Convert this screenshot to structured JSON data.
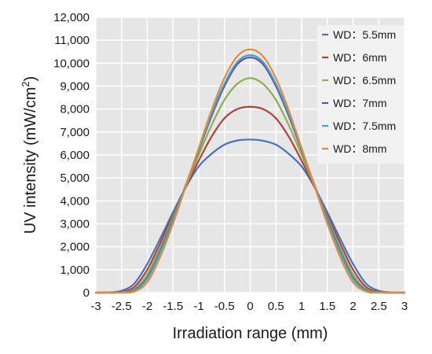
{
  "chart_data": {
    "type": "line",
    "title": "",
    "xlabel": "Irradiation range (mm)",
    "ylabel_main": "UV intensity (mW/cm",
    "ylabel_sup": "2",
    "ylabel_end": ")",
    "xlim": [
      -3,
      3
    ],
    "ylim": [
      0,
      12000
    ],
    "x_ticks": [
      -3,
      -2.5,
      -2,
      -1.5,
      -1,
      -0.5,
      0,
      0.5,
      1,
      1.5,
      2,
      2.5,
      3
    ],
    "x_tick_labels": [
      "-3",
      "-2.5",
      "-2",
      "-1.5",
      "-1",
      "-0.5",
      "0",
      "0.5",
      "1",
      "1.5",
      "2",
      "2.5",
      "3"
    ],
    "y_ticks": [
      0,
      1000,
      2000,
      3000,
      4000,
      5000,
      6000,
      7000,
      8000,
      9000,
      10000,
      11000,
      12000
    ],
    "y_tick_labels": [
      "0",
      "1,000",
      "2,000",
      "3,000",
      "4,000",
      "5,000",
      "6,000",
      "7,000",
      "8,000",
      "9,000",
      "10,000",
      "11,000",
      "12,000"
    ],
    "grid": true,
    "legend_position": "top-right",
    "x": [
      -3,
      -2.75,
      -2.5,
      -2.25,
      -2,
      -1.75,
      -1.5,
      -1.25,
      -1,
      -0.75,
      -0.5,
      -0.25,
      0,
      0.25,
      0.5,
      0.75,
      1,
      1.25,
      1.5,
      1.75,
      2,
      2.25,
      2.5,
      2.75,
      3
    ],
    "series": [
      {
        "name": "WD：5.5mm",
        "color": "#4472c4",
        "values": [
          0,
          10,
          80,
          400,
          1250,
          2350,
          3500,
          4600,
          5500,
          6050,
          6450,
          6630,
          6670,
          6620,
          6450,
          6050,
          5500,
          4600,
          3500,
          2350,
          1250,
          400,
          80,
          10,
          0
        ]
      },
      {
        "name": "WD：6mm",
        "color": "#b13f3a",
        "values": [
          0,
          0,
          30,
          250,
          1000,
          2150,
          3400,
          4600,
          5750,
          6800,
          7600,
          8000,
          8100,
          8000,
          7600,
          6800,
          5750,
          4600,
          3400,
          2150,
          1000,
          250,
          30,
          0,
          0
        ]
      },
      {
        "name": "WD：6.5mm",
        "color": "#8db049",
        "values": [
          0,
          0,
          20,
          150,
          800,
          1950,
          3300,
          4650,
          6000,
          7300,
          8400,
          9100,
          9350,
          9100,
          8400,
          7300,
          6000,
          4650,
          3300,
          1950,
          800,
          150,
          20,
          0,
          0
        ]
      },
      {
        "name": "WD：7mm",
        "color": "#6350a0",
        "values": [
          0,
          0,
          10,
          100,
          650,
          1800,
          3200,
          4700,
          6200,
          7700,
          9000,
          9950,
          10250,
          9950,
          9000,
          7700,
          6200,
          4700,
          3200,
          1800,
          650,
          100,
          10,
          0,
          0
        ]
      },
      {
        "name": "WD：7.5mm",
        "color": "#3fa3c8",
        "values": [
          0,
          0,
          10,
          80,
          600,
          1750,
          3150,
          4700,
          6250,
          7800,
          9100,
          10050,
          10350,
          10050,
          9100,
          7800,
          6250,
          4700,
          3150,
          1750,
          600,
          80,
          10,
          0,
          0
        ]
      },
      {
        "name": "WD：8mm",
        "color": "#e38b3a",
        "values": [
          0,
          0,
          5,
          50,
          450,
          1550,
          3000,
          4650,
          6300,
          7950,
          9350,
          10300,
          10600,
          10300,
          9350,
          7950,
          6300,
          4650,
          3000,
          1550,
          450,
          50,
          5,
          0,
          0
        ]
      }
    ]
  },
  "colors": {
    "plot_background": "#e6e6e6",
    "grid": "#ffffff",
    "legend_background": "#f2f2f2"
  }
}
